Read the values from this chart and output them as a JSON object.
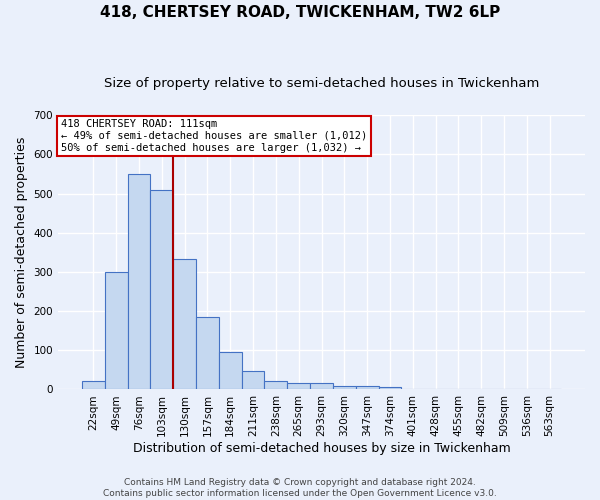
{
  "title": "418, CHERTSEY ROAD, TWICKENHAM, TW2 6LP",
  "subtitle": "Size of property relative to semi-detached houses in Twickenham",
  "xlabel": "Distribution of semi-detached houses by size in Twickenham",
  "ylabel": "Number of semi-detached properties",
  "footnote": "Contains HM Land Registry data © Crown copyright and database right 2024.\nContains public sector information licensed under the Open Government Licence v3.0.",
  "categories": [
    "22sqm",
    "49sqm",
    "76sqm",
    "103sqm",
    "130sqm",
    "157sqm",
    "184sqm",
    "211sqm",
    "238sqm",
    "265sqm",
    "293sqm",
    "320sqm",
    "347sqm",
    "374sqm",
    "401sqm",
    "428sqm",
    "455sqm",
    "482sqm",
    "509sqm",
    "536sqm",
    "563sqm"
  ],
  "values": [
    22,
    300,
    550,
    510,
    333,
    185,
    95,
    48,
    22,
    17,
    17,
    8,
    8,
    5,
    0,
    0,
    0,
    0,
    0,
    0,
    0
  ],
  "bar_color": "#c5d8f0",
  "bar_edge_color": "#4472c4",
  "vline_x": 3.5,
  "vline_color": "#aa0000",
  "annotation_text": "418 CHERTSEY ROAD: 111sqm\n← 49% of semi-detached houses are smaller (1,012)\n50% of semi-detached houses are larger (1,032) →",
  "annotation_box_color": "#ffffff",
  "annotation_box_edge_color": "#cc0000",
  "ylim": [
    0,
    700
  ],
  "yticks": [
    0,
    100,
    200,
    300,
    400,
    500,
    600,
    700
  ],
  "background_color": "#eaf0fb",
  "grid_color": "#ffffff",
  "title_fontsize": 11,
  "subtitle_fontsize": 9.5,
  "axis_label_fontsize": 9,
  "tick_fontsize": 7.5,
  "footnote_fontsize": 6.5
}
